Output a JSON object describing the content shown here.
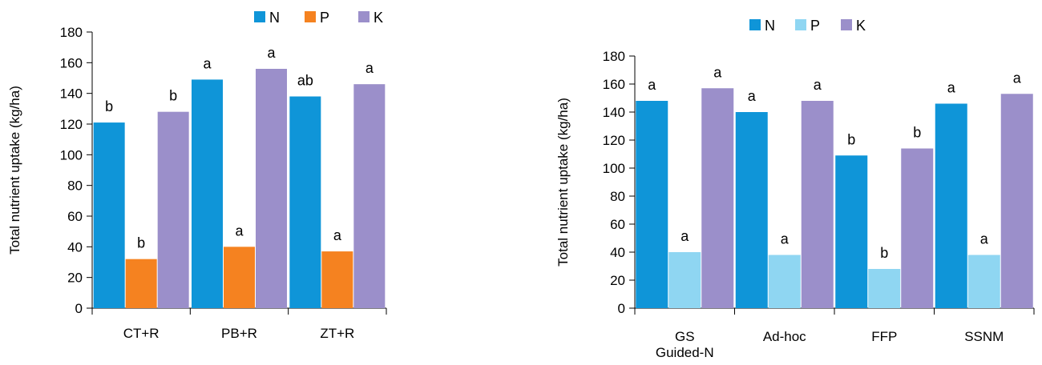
{
  "chart_data": [
    {
      "type": "bar",
      "categories": [
        "CT+R",
        "PB+R",
        "ZT+R"
      ],
      "ylabel": "Total nutrient uptake (kg/ha)",
      "ylim": [
        0,
        180
      ],
      "yticks": [
        0,
        20,
        40,
        60,
        80,
        100,
        120,
        140,
        160,
        180
      ],
      "legend_position": "top",
      "series": [
        {
          "name": "N",
          "color": "#0f95d8",
          "values": [
            121,
            149,
            138
          ],
          "letters": [
            "b",
            "a",
            "ab"
          ]
        },
        {
          "name": "P",
          "color": "#f58220",
          "values": [
            32,
            40,
            37
          ],
          "letters": [
            "b",
            "a",
            "a"
          ]
        },
        {
          "name": "K",
          "color": "#9b8fca",
          "values": [
            128,
            156,
            146
          ],
          "letters": [
            "b",
            "a",
            "a"
          ]
        }
      ]
    },
    {
      "type": "bar",
      "categories": [
        [
          "GS",
          "Guided-N"
        ],
        [
          "Ad-hoc"
        ],
        [
          "FFP"
        ],
        [
          "SSNM"
        ]
      ],
      "ylabel": "Total nutrient uptake (kg/ha)",
      "ylim": [
        0,
        180
      ],
      "yticks": [
        0,
        20,
        40,
        60,
        80,
        100,
        120,
        140,
        160,
        180
      ],
      "legend_position": "top",
      "series": [
        {
          "name": "N",
          "color": "#0f95d8",
          "values": [
            148,
            140,
            109,
            146
          ],
          "letters": [
            "a",
            "a",
            "b",
            "a"
          ]
        },
        {
          "name": "P",
          "color": "#8fd6f2",
          "values": [
            40,
            38,
            28,
            38
          ],
          "letters": [
            "a",
            "a",
            "b",
            "a"
          ]
        },
        {
          "name": "K",
          "color": "#9b8fca",
          "values": [
            157,
            148,
            114,
            153
          ],
          "letters": [
            "a",
            "a",
            "b",
            "a"
          ]
        }
      ]
    }
  ]
}
